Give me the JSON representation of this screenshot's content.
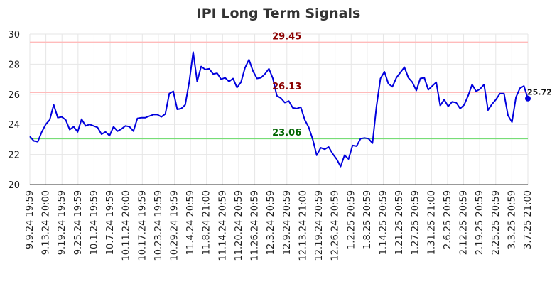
{
  "chart_data": {
    "type": "line",
    "title": "IPI Long Term Signals",
    "xlabel": "",
    "ylabel": "",
    "ylim": [
      20,
      30
    ],
    "grid": true,
    "x_tick_labels": [
      "9.9.24 19:59",
      "9.13.24 20:00",
      "9.19.24 19:59",
      "9.25.24 19:59",
      "10.1.24 19:59",
      "10.7.24 19:59",
      "10.11.24 20:00",
      "10.17.24 19:59",
      "10.23.24 19:59",
      "10.29.24 19:59",
      "11.4.24 20:59",
      "11.8.24 21:00",
      "11.14.24 20:59",
      "11.20.24 20:59",
      "11.26.24 20:59",
      "12.3.24 20:59",
      "12.9.24 20:59",
      "12.13.24 21:00",
      "12.19.24 20:59",
      "12.26.24 20:59",
      "1.2.25 20:59",
      "1.8.25 20:59",
      "1.14.25 20:59",
      "1.21.25 20:59",
      "1.27.25 20:59",
      "1.31.25 21:00",
      "2.6.25 20:59",
      "2.12.25 20:59",
      "2.19.25 20:59",
      "2.25.25 20:59",
      "3.3.25 20:59",
      "3.7.25 21:00"
    ],
    "y_tick_labels": [
      "20",
      "22",
      "24",
      "26",
      "28",
      "30"
    ],
    "series": [
      {
        "color": "#0000dd",
        "values": [
          23.2,
          22.9,
          22.85,
          23.5,
          24.0,
          24.3,
          25.3,
          24.45,
          24.5,
          24.3,
          23.65,
          23.85,
          23.5,
          24.35,
          23.9,
          24.0,
          23.9,
          23.8,
          23.35,
          23.5,
          23.25,
          23.85,
          23.55,
          23.7,
          23.9,
          23.85,
          23.55,
          24.4,
          24.45,
          24.45,
          24.55,
          24.65,
          24.65,
          24.5,
          24.7,
          26.05,
          26.2,
          25.0,
          25.05,
          25.3,
          26.8,
          28.8,
          26.85,
          27.85,
          27.65,
          27.7,
          27.35,
          27.4,
          27.0,
          27.1,
          26.85,
          27.05,
          26.45,
          26.8,
          27.75,
          28.3,
          27.55,
          27.05,
          27.1,
          27.35,
          27.7,
          27.05,
          25.9,
          25.75,
          25.45,
          25.55,
          25.1,
          25.05,
          25.15,
          24.3,
          23.8,
          23.0,
          21.95,
          22.45,
          22.35,
          22.5,
          22.05,
          21.7,
          21.2,
          21.95,
          21.7,
          22.6,
          22.55,
          23.05,
          23.1,
          23.05,
          22.75,
          25.2,
          27.05,
          27.5,
          26.7,
          26.5,
          27.1,
          27.45,
          27.8,
          27.1,
          26.8,
          26.25,
          27.05,
          27.1,
          26.3,
          26.55,
          26.8,
          25.25,
          25.65,
          25.2,
          25.5,
          25.45,
          25.05,
          25.3,
          25.9,
          26.65,
          26.2,
          26.35,
          26.65,
          24.95,
          25.35,
          25.65,
          26.05,
          26.05,
          24.6,
          24.15,
          25.8,
          26.4,
          26.55,
          25.72
        ]
      }
    ],
    "reference_lines": [
      {
        "value": 29.45,
        "label": "29.45",
        "line_color": "#ffbbbb",
        "label_color": "#8b0000"
      },
      {
        "value": 26.13,
        "label": "26.13",
        "line_color": "#ffbbbb",
        "label_color": "#8b0000"
      },
      {
        "value": 23.06,
        "label": "23.06",
        "line_color": "#77dd77",
        "label_color": "#006400"
      }
    ],
    "last_value_label": "25.72"
  }
}
